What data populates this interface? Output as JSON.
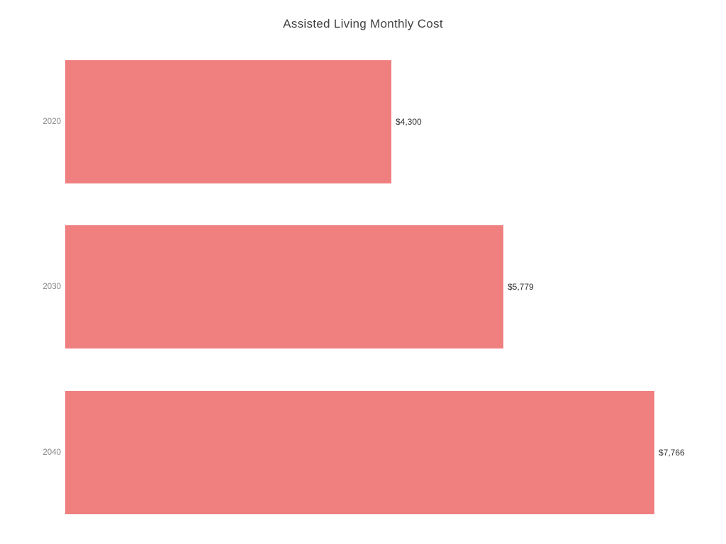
{
  "chart_data": {
    "type": "bar",
    "orientation": "horizontal",
    "title": "Assisted Living Monthly Cost",
    "categories": [
      "2020",
      "2030",
      "2040"
    ],
    "values": [
      4300,
      5779,
      7766
    ],
    "value_labels": [
      "$4,300",
      "$5,779",
      "$7,766"
    ],
    "xlabel": "",
    "ylabel": "",
    "xlim": [
      0,
      7766
    ],
    "grid": false,
    "legend": false,
    "axes_visible": false,
    "colors": {
      "bar": "#F08080",
      "title": "#424242",
      "category_label": "#878787",
      "value_label": "#333333",
      "background": "#ffffff"
    }
  }
}
